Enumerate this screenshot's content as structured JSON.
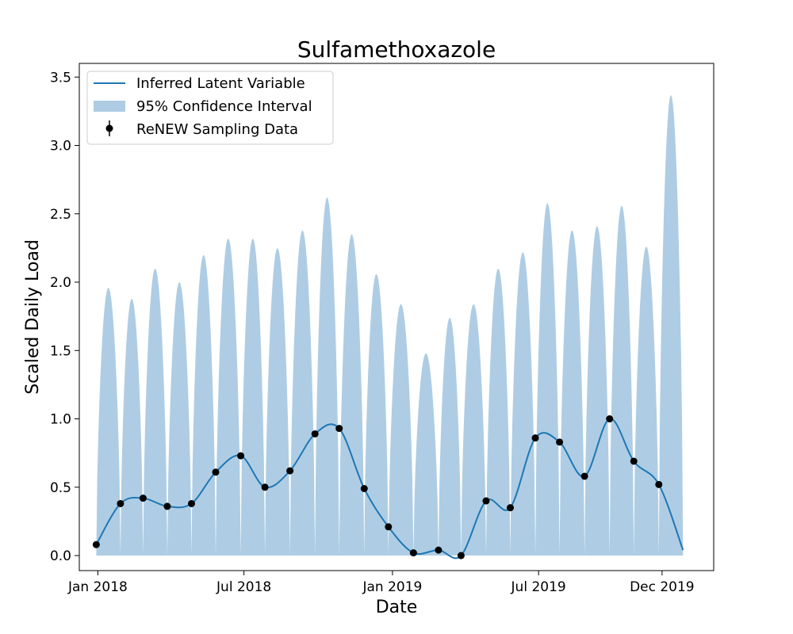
{
  "chart_data": {
    "type": "line",
    "title": "Sulfamethoxazole",
    "xlabel": "Date",
    "ylabel": "Scaled Daily Load",
    "ylim": [
      -0.11,
      3.6
    ],
    "yticks": [
      0.0,
      0.5,
      1.0,
      1.5,
      2.0,
      2.5,
      3.0,
      3.5
    ],
    "ytick_labels": [
      "0.0",
      "0.5",
      "1.0",
      "1.5",
      "2.0",
      "2.5",
      "3.0",
      "3.5"
    ],
    "xlim": [
      "2017-12-09",
      "2020-02-03"
    ],
    "xticks": [
      "2018-01-01",
      "2018-07-01",
      "2019-01-01",
      "2019-07-01",
      "2019-12-01"
    ],
    "xtick_labels": [
      "Jan 2018",
      "Jul 2018",
      "Jan 2019",
      "Jul 2019",
      "Dec 2019"
    ],
    "grid": false,
    "legend_position": "top-left",
    "legend": [
      "Inferred Latent Variable",
      "95% Confidence Interval",
      "ReNEW Sampling Data"
    ],
    "colors": {
      "line": "#1f77b4",
      "band": "#aecde4",
      "points": "#000000"
    },
    "sampling_data": {
      "name": "ReNEW Sampling Data",
      "x": [
        "2017-12-30",
        "2018-01-29",
        "2018-02-26",
        "2018-03-28",
        "2018-04-27",
        "2018-05-27",
        "2018-06-27",
        "2018-07-27",
        "2018-08-27",
        "2018-09-27",
        "2018-10-27",
        "2018-11-27",
        "2018-12-27",
        "2019-01-27",
        "2019-02-27",
        "2019-03-27",
        "2019-04-27",
        "2019-05-27",
        "2019-06-27",
        "2019-07-27",
        "2019-08-27",
        "2019-09-27",
        "2019-10-27",
        "2019-11-27"
      ],
      "y": [
        0.08,
        0.38,
        0.42,
        0.36,
        0.38,
        0.61,
        0.73,
        0.5,
        0.62,
        0.89,
        0.93,
        0.49,
        0.21,
        0.02,
        0.04,
        0.0,
        0.4,
        0.35,
        0.86,
        0.83,
        0.58,
        1.0,
        0.69,
        0.52
      ]
    },
    "latent_end": {
      "x": "2019-12-27",
      "y": 0.04
    },
    "confidence_interval": {
      "name": "95% Confidence Interval",
      "lower": 0.0,
      "upper_peaks": {
        "x": [
          "2018-01-12",
          "2018-02-10",
          "2018-03-13",
          "2018-04-12",
          "2018-05-12",
          "2018-06-12",
          "2018-07-12",
          "2018-08-12",
          "2018-09-12",
          "2018-10-12",
          "2018-11-12",
          "2018-12-12",
          "2019-01-12",
          "2019-02-12",
          "2019-03-12",
          "2019-04-12",
          "2019-05-12",
          "2019-06-12",
          "2019-07-12",
          "2019-08-12",
          "2019-09-12",
          "2019-10-12",
          "2019-11-12",
          "2019-12-25"
        ],
        "y": [
          1.96,
          1.88,
          2.1,
          2.0,
          2.2,
          2.32,
          2.32,
          2.25,
          2.38,
          2.62,
          2.35,
          2.06,
          1.84,
          1.48,
          1.74,
          1.84,
          2.1,
          2.22,
          2.58,
          2.38,
          2.41,
          2.56,
          2.26,
          3.37
        ]
      }
    }
  }
}
